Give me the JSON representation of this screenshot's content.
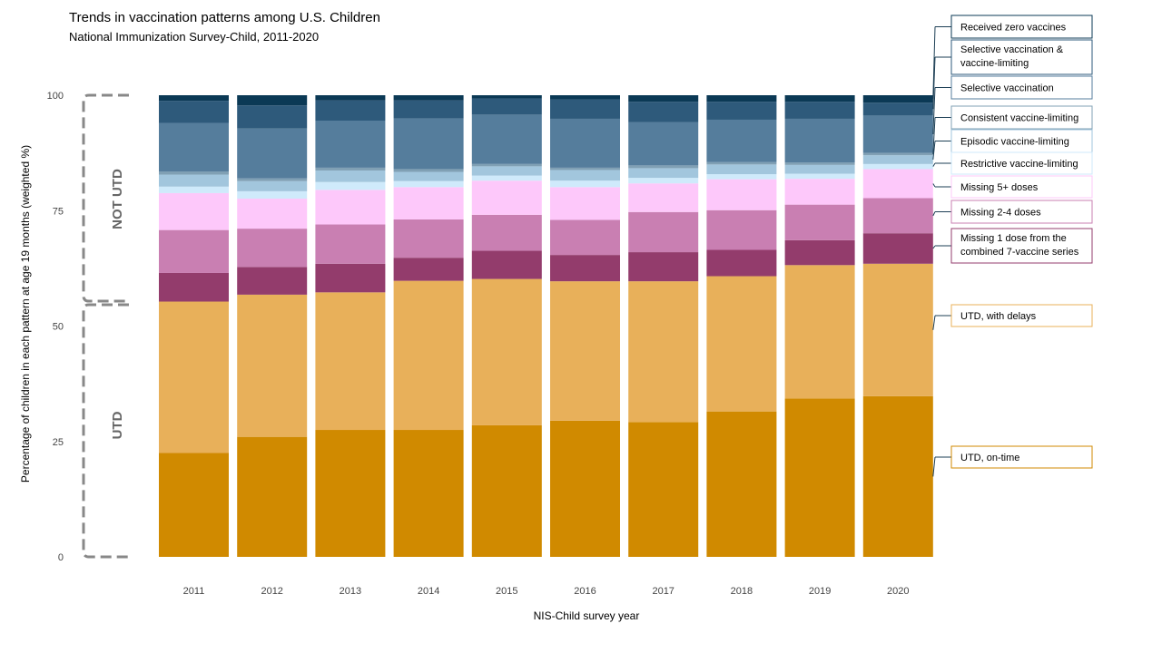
{
  "title": "Trends in vaccination patterns among U.S. Children",
  "subtitle": "National Immunization Survey-Child, 2011-2020",
  "colors": {
    "UTD, on-time": "#d08a00",
    "UTD, with delays": "#e8b05a",
    "Missing 1 dose from the combined 7-vaccine series": "#933c6c",
    "Missing 2-4 doses": "#c97fb2",
    "Missing 5+ doses": "#fdc8fa",
    "Restrictive vaccine-limiting": "#cfeafb",
    "Episodic vaccine-limiting": "#a2c6dd",
    "Consistent vaccine-limiting": "#80a0b4",
    "Selective vaccination": "#557d9c",
    "Selective vaccination & vaccine-limiting": "#2e5a7b",
    "Received zero vaccines": "#0b3955"
  },
  "chart_data": {
    "type": "bar",
    "stacked": true,
    "title": "Trends in vaccination patterns among U.S. Children",
    "subtitle": "National Immunization Survey-Child, 2011-2020",
    "xlabel": "NIS-Child survey year",
    "ylabel": "Percentage of children in each pattern at age 19 months (weighted %)",
    "ylim": [
      0,
      100
    ],
    "yticks": [
      0,
      25,
      50,
      75,
      100
    ],
    "grid": false,
    "legend_position": "right",
    "categories": [
      "2011",
      "2012",
      "2013",
      "2014",
      "2015",
      "2016",
      "2017",
      "2018",
      "2019",
      "2020"
    ],
    "series": [
      {
        "name": "UTD, on-time",
        "values": [
          22.5,
          26.0,
          27.5,
          27.5,
          28.5,
          29.5,
          29.2,
          31.5,
          34.3,
          34.8
        ]
      },
      {
        "name": "UTD, with delays",
        "values": [
          32.8,
          30.8,
          29.8,
          32.3,
          31.7,
          30.2,
          30.5,
          29.3,
          28.9,
          28.7
        ]
      },
      {
        "name": "Missing 1 dose from the combined 7-vaccine series",
        "values": [
          6.2,
          6.0,
          6.2,
          5.0,
          6.1,
          5.7,
          6.3,
          5.7,
          5.4,
          6.6
        ]
      },
      {
        "name": "Missing 2-4 doses",
        "values": [
          9.3,
          8.3,
          8.5,
          8.3,
          7.8,
          7.6,
          8.7,
          8.6,
          7.7,
          7.6
        ]
      },
      {
        "name": "Missing 5+ doses",
        "values": [
          8.0,
          6.5,
          7.5,
          7.0,
          7.4,
          7.1,
          6.2,
          6.7,
          5.6,
          6.3
        ]
      },
      {
        "name": "Restrictive vaccine-limiting",
        "values": [
          1.4,
          1.6,
          1.7,
          1.3,
          1.1,
          1.4,
          1.2,
          1.1,
          1.1,
          1.1
        ]
      },
      {
        "name": "Episodic vaccine-limiting",
        "values": [
          2.6,
          2.2,
          2.5,
          2.0,
          2.0,
          2.3,
          2.1,
          2.1,
          1.9,
          1.9
        ]
      },
      {
        "name": "Consistent vaccine-limiting",
        "values": [
          0.7,
          0.6,
          0.6,
          0.6,
          0.5,
          0.5,
          0.6,
          0.5,
          0.5,
          0.5
        ]
      },
      {
        "name": "Selective vaccination",
        "values": [
          10.5,
          10.8,
          10.2,
          11.0,
          10.7,
          10.6,
          9.4,
          9.2,
          9.5,
          8.1
        ]
      },
      {
        "name": "Selective vaccination & vaccine-limiting",
        "values": [
          4.8,
          5.0,
          4.4,
          3.9,
          3.5,
          4.2,
          4.4,
          3.9,
          3.7,
          2.8
        ]
      },
      {
        "name": "Received zero vaccines",
        "values": [
          1.2,
          1.2,
          1.1,
          1.1,
          0.9,
          0.9,
          1.4,
          1.4,
          1.4,
          1.6
        ]
      }
    ],
    "annotations": {
      "bracket_top": "NOT UTD",
      "bracket_bottom": "UTD",
      "bracket_split_value": 55,
      "legend_labels": [
        [
          "Received zero vaccines"
        ],
        [
          "Selective vaccination &",
          "vaccine-limiting"
        ],
        [
          "Selective vaccination"
        ],
        [
          "Consistent vaccine-limiting"
        ],
        [
          "Episodic vaccine-limiting"
        ],
        [
          "Restrictive vaccine-limiting"
        ],
        [
          "Missing 5+ doses"
        ],
        [
          "Missing 2-4 doses"
        ],
        [
          "Missing 1 dose from the",
          "combined 7-vaccine series"
        ],
        [
          "UTD, with delays"
        ],
        [
          "UTD, on-time"
        ]
      ]
    }
  }
}
